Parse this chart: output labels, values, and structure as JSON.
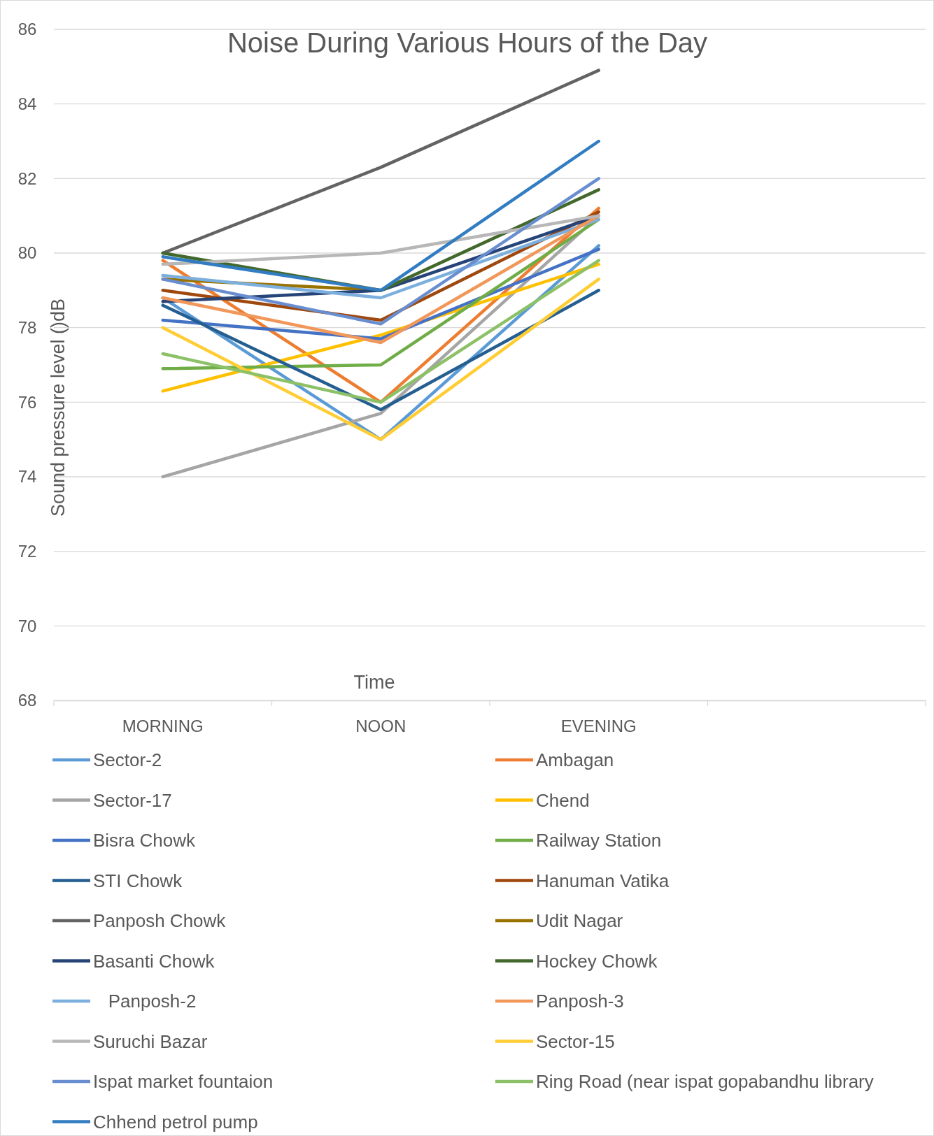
{
  "chart_data": {
    "type": "line",
    "title": "Noise During Various Hours of the Day",
    "xlabel": "Time",
    "ylabel": "Sound pressure level ()dB",
    "categories": [
      "MORNING",
      "NOON",
      "EVENING",
      null
    ],
    "ylim": [
      68,
      86
    ],
    "yticks": [
      68,
      70,
      72,
      74,
      76,
      78,
      80,
      82,
      84,
      86
    ],
    "grid": "y",
    "legend": "bottom",
    "marker": "none",
    "line_style": "solid",
    "series": [
      {
        "name": "Sector-2",
        "color": "#5b9bd5",
        "values": [
          78.8,
          75.0,
          80.2,
          null
        ]
      },
      {
        "name": "Ambagan",
        "color": "#ed7d31",
        "values": [
          79.8,
          76.0,
          81.2,
          null
        ]
      },
      {
        "name": "Sector-17",
        "color": "#a5a5a5",
        "values": [
          74.0,
          75.7,
          81.0,
          null
        ]
      },
      {
        "name": "Chend",
        "color": "#ffc000",
        "values": [
          76.3,
          77.8,
          79.7,
          null
        ]
      },
      {
        "name": "Bisra Chowk",
        "color": "#4472c4",
        "values": [
          78.2,
          77.7,
          80.1,
          null
        ]
      },
      {
        "name": "Railway Station",
        "color": "#70ad47",
        "values": [
          76.9,
          77.0,
          80.9,
          null
        ]
      },
      {
        "name": "STI Chowk",
        "color": "#255e91",
        "values": [
          78.6,
          75.8,
          79.0,
          null
        ]
      },
      {
        "name": "Hanuman Vatika",
        "color": "#9e480e",
        "values": [
          79.0,
          78.2,
          81.1,
          null
        ]
      },
      {
        "name": "Panposh Chowk",
        "color": "#636363",
        "values": [
          80.0,
          82.3,
          84.9,
          null
        ]
      },
      {
        "name": "Udit Nagar",
        "color": "#997300",
        "values": [
          79.3,
          79.0,
          null,
          null
        ]
      },
      {
        "name": "Basanti Chowk",
        "color": "#264478",
        "values": [
          78.7,
          79.0,
          81.0,
          null
        ]
      },
      {
        "name": "Hockey Chowk",
        "color": "#43682b",
        "values": [
          80.0,
          79.0,
          81.7,
          null
        ]
      },
      {
        "name": "   Panposh-2",
        "color": "#7cafdd",
        "values": [
          79.4,
          78.8,
          80.9,
          null
        ]
      },
      {
        "name": "Panposh-3",
        "color": "#f1975a",
        "values": [
          78.8,
          77.6,
          81.0,
          null
        ]
      },
      {
        "name": "Suruchi Bazar",
        "color": "#b7b7b7",
        "values": [
          79.7,
          80.0,
          81.0,
          null
        ]
      },
      {
        "name": "Sector-15",
        "color": "#ffcd33",
        "values": [
          78.0,
          75.0,
          79.3,
          null
        ]
      },
      {
        "name": "Ispat market fountaion",
        "color": "#698ed0",
        "values": [
          79.3,
          78.1,
          82.0,
          null
        ]
      },
      {
        "name": "Ring Road (near ispat gopabandhu library",
        "color": "#8cc168",
        "values": [
          77.3,
          76.0,
          79.8,
          null
        ]
      },
      {
        "name": "Chhend petrol pump",
        "color": "#327dc2",
        "values": [
          79.9,
          79.0,
          83.0,
          null
        ]
      }
    ]
  }
}
